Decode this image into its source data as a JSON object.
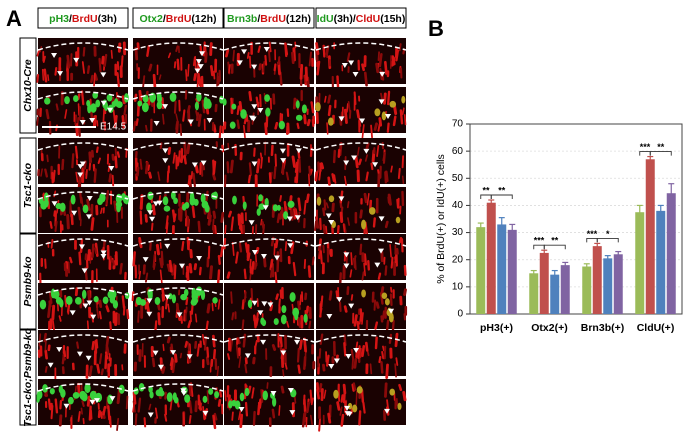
{
  "panel_labels": {
    "a": "A",
    "b": "B"
  },
  "panel_a": {
    "column_headers": [
      [
        {
          "text": "pH3",
          "color": "#1f9a1f"
        },
        {
          "text": "/",
          "color": "#000000"
        },
        {
          "text": "BrdU",
          "color": "#d01010"
        },
        {
          "text": "(3h)",
          "color": "#000000"
        }
      ],
      [
        {
          "text": "Otx2",
          "color": "#1f9a1f"
        },
        {
          "text": "/",
          "color": "#000000"
        },
        {
          "text": "BrdU",
          "color": "#d01010"
        },
        {
          "text": "(12h)",
          "color": "#000000"
        }
      ],
      [
        {
          "text": "Brn3b",
          "color": "#1f9a1f"
        },
        {
          "text": "/",
          "color": "#000000"
        },
        {
          "text": "BrdU",
          "color": "#d01010"
        },
        {
          "text": "(12h)",
          "color": "#000000"
        }
      ],
      [
        {
          "text": "IdU",
          "color": "#1f9a1f"
        },
        {
          "text": "(3h)/",
          "color": "#000000"
        },
        {
          "text": "CldU",
          "color": "#d01010"
        },
        {
          "text": "(15h)",
          "color": "#000000"
        }
      ]
    ],
    "row_labels": [
      "Chx10-Cre",
      "Tsc1-cko",
      "Psmb9-ko",
      "Tsc1-cko;Psmb9-ko"
    ],
    "scale_label": "E14.5"
  },
  "chart_data": {
    "type": "bar",
    "ylabel": "% of BrdU(+) or IdU(+) cells",
    "categories": [
      "pH3(+)",
      "Otx2(+)",
      "Brn3b(+)",
      "CldU(+)"
    ],
    "series": [
      {
        "color": "#9bbb59",
        "values": [
          32,
          15,
          17.5,
          37.5
        ],
        "errors": [
          1.5,
          1,
          1,
          2.5
        ]
      },
      {
        "color": "#c0504d",
        "values": [
          41,
          22.5,
          25,
          57
        ],
        "errors": [
          1,
          1,
          1,
          1
        ]
      },
      {
        "color": "#4f81bd",
        "values": [
          33,
          14.5,
          20.5,
          38
        ],
        "errors": [
          2.5,
          1.5,
          1,
          2
        ]
      },
      {
        "color": "#8064a2",
        "values": [
          31,
          18,
          22,
          44.5
        ],
        "errors": [
          2,
          1,
          1,
          3.5
        ]
      }
    ],
    "significance": [
      [
        "**",
        "**"
      ],
      [
        "***",
        "**"
      ],
      [
        "***",
        "*"
      ],
      [
        "***",
        "**"
      ]
    ],
    "ylim": [
      0,
      70
    ],
    "yticks": [
      0,
      10,
      20,
      30,
      40,
      50,
      60,
      70
    ],
    "grid": true
  }
}
